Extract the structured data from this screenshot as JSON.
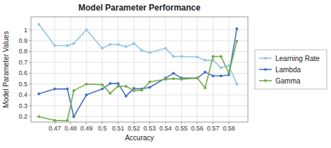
{
  "chart_data": {
    "type": "line",
    "title": "Model Parameter Performance",
    "xlabel": "Accuracy",
    "ylabel": "Model Parameter Values",
    "x": [
      0.46,
      0.47,
      0.478,
      0.482,
      0.49,
      0.5,
      0.505,
      0.51,
      0.515,
      0.52,
      0.525,
      0.53,
      0.54,
      0.545,
      0.55,
      0.56,
      0.565,
      0.57,
      0.575,
      0.58,
      0.585
    ],
    "series": [
      {
        "name": "Learning Rate",
        "color": "#93C6E0",
        "values": [
          1.05,
          0.855,
          0.855,
          0.875,
          1.0,
          0.83,
          0.865,
          0.865,
          0.845,
          0.875,
          0.81,
          0.79,
          0.83,
          0.755,
          0.755,
          0.75,
          0.72,
          0.72,
          0.65,
          0.67,
          0.5
        ]
      },
      {
        "name": "Lambda",
        "color": "#4472C4",
        "values": [
          0.41,
          0.455,
          0.455,
          0.2,
          0.4,
          0.455,
          0.505,
          0.505,
          0.39,
          0.46,
          0.455,
          0.47,
          0.555,
          0.6,
          0.555,
          0.555,
          0.61,
          0.575,
          0.575,
          0.585,
          1.01
        ]
      },
      {
        "name": "Gamma",
        "color": "#70AD47",
        "values": [
          0.2,
          0.165,
          0.165,
          0.44,
          0.5,
          0.495,
          0.415,
          0.48,
          0.48,
          0.44,
          0.445,
          0.52,
          0.545,
          0.55,
          0.545,
          0.555,
          0.465,
          0.755,
          0.755,
          0.6,
          0.895
        ]
      }
    ],
    "xlim": [
      0.455,
      0.592
    ],
    "ylim": [
      0.15,
      1.12
    ],
    "xticks": [
      0.47,
      0.48,
      0.49,
      0.5,
      0.51,
      0.52,
      0.53,
      0.54,
      0.55,
      0.56,
      0.57,
      0.58
    ],
    "yticks": [
      0.2,
      0.3,
      0.4,
      0.5,
      0.6,
      0.7,
      0.8,
      0.9,
      1
    ],
    "grid": true,
    "legend": "right",
    "marker": "circle"
  }
}
